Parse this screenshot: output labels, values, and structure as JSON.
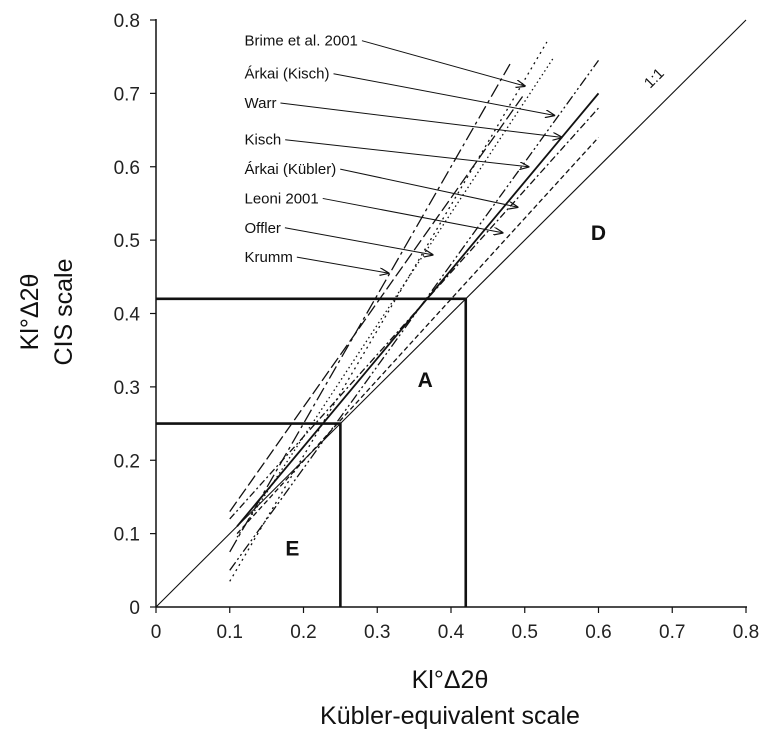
{
  "chart_data": {
    "type": "line",
    "xlabel_line1": "Kl°Δ2θ",
    "xlabel_line2": "Kübler-equivalent scale",
    "ylabel_line1": "Kl°Δ2θ",
    "ylabel_line2": "CIS scale",
    "xlim": [
      0,
      0.8
    ],
    "ylim": [
      0,
      0.8
    ],
    "x_ticks": [
      "0",
      "0.1",
      "0.2",
      "0.3",
      "0.4",
      "0.5",
      "0.6",
      "0.7",
      "0.8"
    ],
    "y_ticks": [
      "0",
      "0.1",
      "0.2",
      "0.3",
      "0.4",
      "0.5",
      "0.6",
      "0.7",
      "0.8"
    ],
    "grid": false,
    "reference_line": {
      "label": "1:1",
      "x": [
        0,
        0.8
      ],
      "y": [
        0,
        0.8
      ]
    },
    "zone_boundaries": [
      {
        "x": [
          0,
          0.42,
          0.42
        ],
        "y": [
          0.42,
          0.42,
          0
        ]
      },
      {
        "x": [
          0,
          0.25,
          0.25
        ],
        "y": [
          0.25,
          0.25,
          0
        ]
      }
    ],
    "regions": [
      {
        "label": "E",
        "x": 0.185,
        "y": 0.07
      },
      {
        "label": "A",
        "x": 0.365,
        "y": 0.3
      },
      {
        "label": "D",
        "x": 0.6,
        "y": 0.5
      }
    ],
    "series": [
      {
        "name": "Brime et al. 2001",
        "dash": "14,4,3,4",
        "x": [
          0.1,
          0.48
        ],
        "y": [
          0.075,
          0.74
        ],
        "label_at": [
          0.12,
          0.765
        ],
        "arrow_to": [
          0.5,
          0.71
        ]
      },
      {
        "name": "Árkai (Kisch)",
        "dash": "10,3,2,3,2,3",
        "x": [
          0.1,
          0.6
        ],
        "y": [
          0.05,
          0.745
        ],
        "label_at": [
          0.12,
          0.72
        ],
        "arrow_to": [
          0.54,
          0.67
        ]
      },
      {
        "name": "Warr",
        "dash": "1.5,3",
        "x": [
          0.11,
          0.54
        ],
        "y": [
          0.095,
          0.75
        ],
        "label_at": [
          0.12,
          0.68
        ],
        "arrow_to": [
          0.55,
          0.64
        ]
      },
      {
        "name": "Kisch",
        "dash": "",
        "x": [
          0.11,
          0.6
        ],
        "y": [
          0.11,
          0.7
        ],
        "label_at": [
          0.12,
          0.63
        ],
        "arrow_to": [
          0.505,
          0.6
        ]
      },
      {
        "name": "Árkai (Kübler)",
        "dash": "7,3,2,3",
        "x": [
          0.1,
          0.6
        ],
        "y": [
          0.12,
          0.68
        ],
        "label_at": [
          0.12,
          0.59
        ],
        "arrow_to": [
          0.49,
          0.545
        ]
      },
      {
        "name": "Leoni 2001",
        "dash": "5,3",
        "x": [
          0.11,
          0.6
        ],
        "y": [
          0.1,
          0.64
        ],
        "label_at": [
          0.12,
          0.55
        ],
        "arrow_to": [
          0.47,
          0.51
        ]
      },
      {
        "name": "Offler",
        "dash": "2,4",
        "x": [
          0.1,
          0.53
        ],
        "y": [
          0.035,
          0.77
        ],
        "label_at": [
          0.12,
          0.51
        ],
        "arrow_to": [
          0.375,
          0.48
        ]
      },
      {
        "name": "Krumm",
        "dash": "12,4",
        "x": [
          0.1,
          0.5
        ],
        "y": [
          0.13,
          0.7
        ],
        "label_at": [
          0.12,
          0.47
        ],
        "arrow_to": [
          0.315,
          0.455
        ]
      }
    ]
  }
}
